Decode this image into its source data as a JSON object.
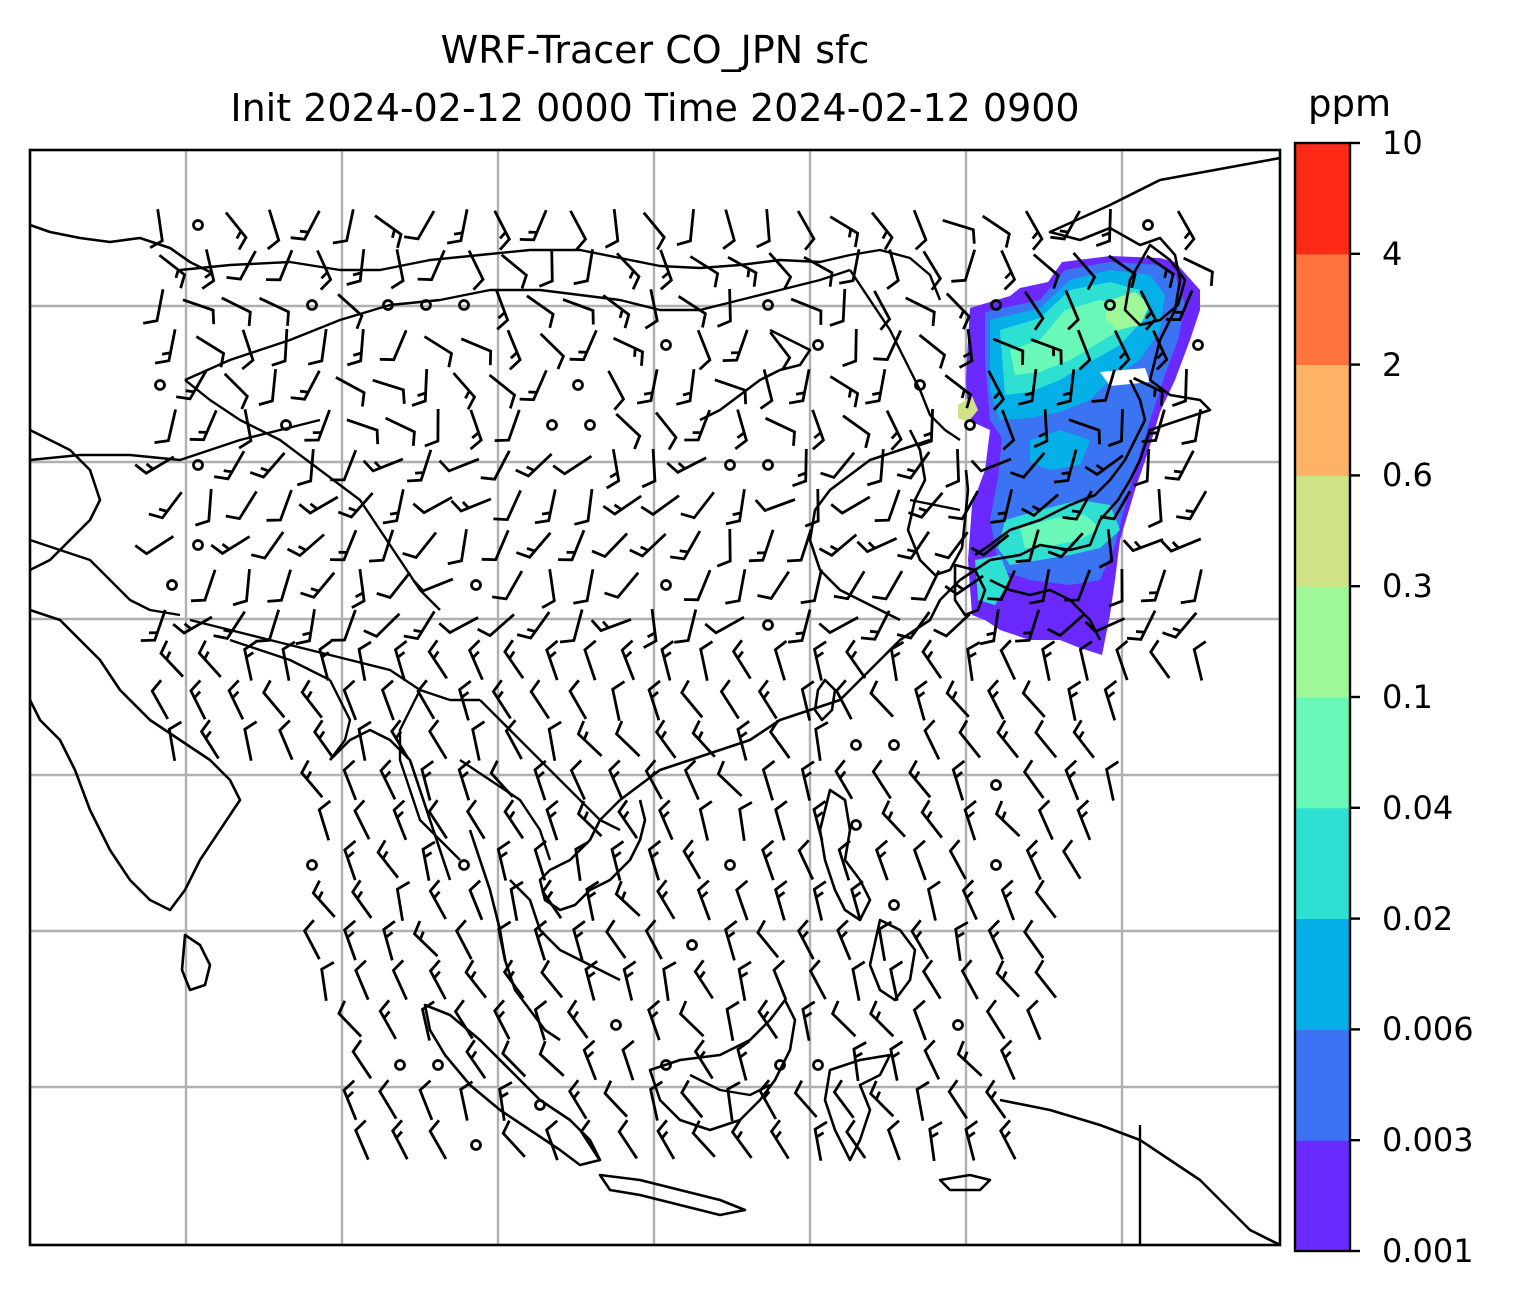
{
  "title": {
    "line1": "WRF-Tracer CO_JPN sfc",
    "line2": "Init 2024-02-12 0000 Time 2024-02-12 0900"
  },
  "colorbar": {
    "unit": "ppm",
    "tick_labels": [
      "0.001",
      "0.003",
      "0.006",
      "0.02",
      "0.04",
      "0.1",
      "0.3",
      "0.6",
      "2",
      "4",
      "10"
    ],
    "colors": [
      "#6a2aff",
      "#3b74f2",
      "#05b0e8",
      "#2ee0d2",
      "#69f8b8",
      "#9ef89a",
      "#d0e286",
      "#fdb266",
      "#ff733f",
      "#ff2a15"
    ]
  },
  "map": {
    "gridlines": true,
    "features": [
      "coastlines",
      "country-borders",
      "wind-barbs",
      "tracer-concentration"
    ]
  }
}
